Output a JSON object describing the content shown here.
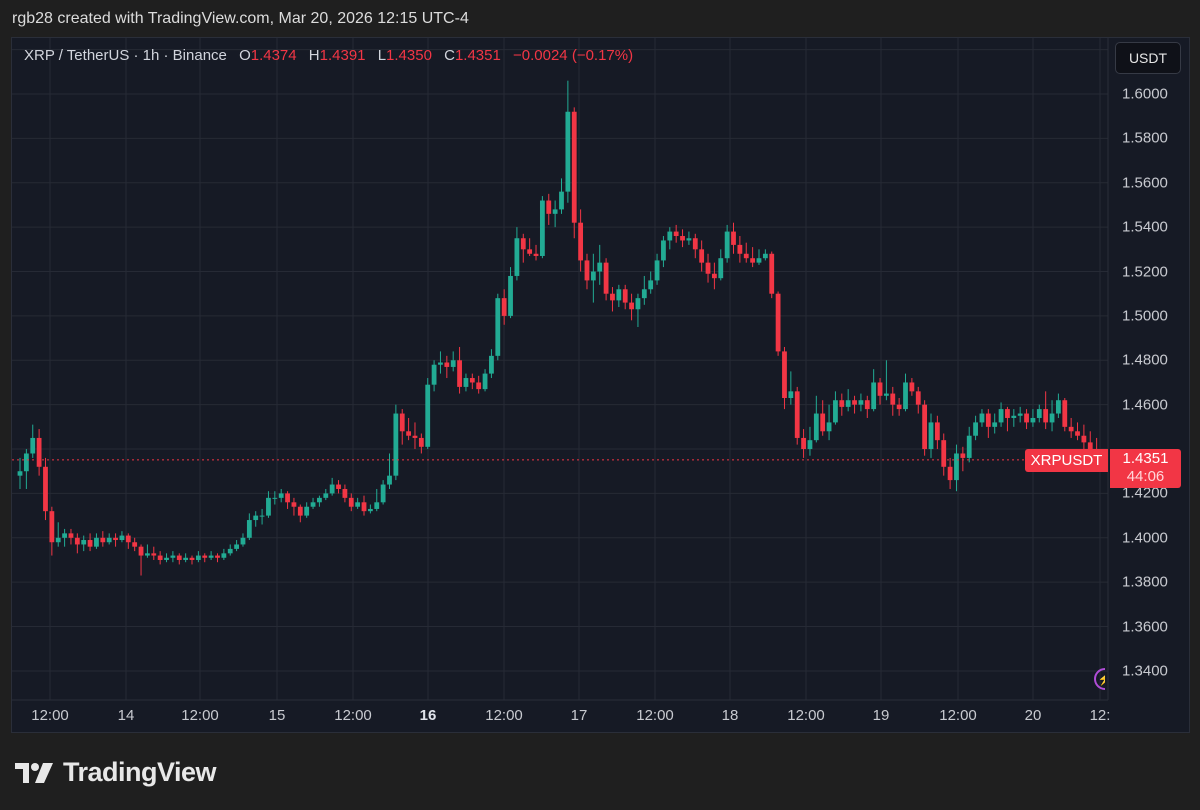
{
  "credit": "rgb28 created with TradingView.com, Mar 20, 2026 12:15 UTC-4",
  "legend": {
    "symbol": "XRP / TetherUS · 1h · Binance",
    "o_label": "O",
    "o": "1.4374",
    "h_label": "H",
    "h": "1.4391",
    "l_label": "L",
    "l": "1.4350",
    "c_label": "C",
    "c": "1.4351",
    "change": "−0.0024 (−0.17%)"
  },
  "unit_button": "USDT",
  "symbol_label": "XRPUSDT",
  "last_price": "1.4351",
  "countdown": "44:06",
  "logo_text": "TradingView",
  "colors": {
    "up": "#22ab94",
    "down": "#f23645",
    "background": "#161a25",
    "grid": "#262a35",
    "accent": "#f23645"
  },
  "icons": {
    "alert": "lightning-bolt-icon",
    "logo": "tradingview-logo-icon"
  },
  "chart_data": {
    "type": "candlestick",
    "title": "",
    "xlabel": "",
    "ylabel": "",
    "ylim": [
      1.325,
      1.62
    ],
    "grid": true,
    "y_ticks": [
      "1.6000",
      "1.5800",
      "1.5600",
      "1.5400",
      "1.5200",
      "1.5000",
      "1.4800",
      "1.4600",
      "1.4400",
      "1.4200",
      "1.4000",
      "1.3800",
      "1.3600",
      "1.3400"
    ],
    "x_ticks": [
      {
        "label": "12:00",
        "bold": false
      },
      {
        "label": "14",
        "bold": false
      },
      {
        "label": "12:00",
        "bold": false
      },
      {
        "label": "15",
        "bold": false
      },
      {
        "label": "12:00",
        "bold": false
      },
      {
        "label": "16",
        "bold": true
      },
      {
        "label": "12:00",
        "bold": false
      },
      {
        "label": "17",
        "bold": false
      },
      {
        "label": "12:00",
        "bold": false
      },
      {
        "label": "18",
        "bold": false
      },
      {
        "label": "12:00",
        "bold": false
      },
      {
        "label": "19",
        "bold": false
      },
      {
        "label": "12:00",
        "bold": false
      },
      {
        "label": "20",
        "bold": false
      },
      {
        "label": "12:",
        "bold": false
      }
    ],
    "current_price": 1.4351,
    "ohlc": [
      [
        1.428,
        1.436,
        1.422,
        1.43
      ],
      [
        1.43,
        1.44,
        1.422,
        1.438
      ],
      [
        1.438,
        1.451,
        1.436,
        1.445
      ],
      [
        1.445,
        1.449,
        1.428,
        1.432
      ],
      [
        1.432,
        1.436,
        1.408,
        1.412
      ],
      [
        1.412,
        1.414,
        1.392,
        1.398
      ],
      [
        1.398,
        1.407,
        1.396,
        1.4
      ],
      [
        1.4,
        1.404,
        1.396,
        1.402
      ],
      [
        1.402,
        1.404,
        1.397,
        1.4
      ],
      [
        1.4,
        1.402,
        1.393,
        1.397
      ],
      [
        1.397,
        1.401,
        1.394,
        1.399
      ],
      [
        1.399,
        1.402,
        1.394,
        1.396
      ],
      [
        1.396,
        1.402,
        1.395,
        1.4
      ],
      [
        1.4,
        1.403,
        1.396,
        1.398
      ],
      [
        1.398,
        1.402,
        1.397,
        1.4
      ],
      [
        1.4,
        1.402,
        1.396,
        1.399
      ],
      [
        1.399,
        1.403,
        1.398,
        1.401
      ],
      [
        1.401,
        1.402,
        1.395,
        1.398
      ],
      [
        1.398,
        1.4,
        1.394,
        1.396
      ],
      [
        1.396,
        1.397,
        1.383,
        1.392
      ],
      [
        1.392,
        1.397,
        1.391,
        1.393
      ],
      [
        1.393,
        1.396,
        1.39,
        1.392
      ],
      [
        1.392,
        1.394,
        1.388,
        1.39
      ],
      [
        1.39,
        1.393,
        1.389,
        1.391
      ],
      [
        1.391,
        1.394,
        1.389,
        1.392
      ],
      [
        1.392,
        1.393,
        1.388,
        1.39
      ],
      [
        1.39,
        1.393,
        1.389,
        1.391
      ],
      [
        1.391,
        1.392,
        1.388,
        1.39
      ],
      [
        1.39,
        1.394,
        1.389,
        1.392
      ],
      [
        1.392,
        1.393,
        1.389,
        1.391
      ],
      [
        1.391,
        1.394,
        1.39,
        1.392
      ],
      [
        1.392,
        1.393,
        1.389,
        1.391
      ],
      [
        1.391,
        1.395,
        1.39,
        1.393
      ],
      [
        1.393,
        1.397,
        1.392,
        1.395
      ],
      [
        1.395,
        1.399,
        1.394,
        1.397
      ],
      [
        1.397,
        1.402,
        1.396,
        1.4
      ],
      [
        1.4,
        1.411,
        1.399,
        1.408
      ],
      [
        1.408,
        1.412,
        1.405,
        1.41
      ],
      [
        1.41,
        1.413,
        1.406,
        1.41
      ],
      [
        1.41,
        1.421,
        1.409,
        1.418
      ],
      [
        1.418,
        1.421,
        1.415,
        1.418
      ],
      [
        1.418,
        1.422,
        1.416,
        1.42
      ],
      [
        1.42,
        1.421,
        1.413,
        1.416
      ],
      [
        1.416,
        1.418,
        1.41,
        1.414
      ],
      [
        1.414,
        1.415,
        1.407,
        1.41
      ],
      [
        1.41,
        1.416,
        1.409,
        1.414
      ],
      [
        1.414,
        1.418,
        1.413,
        1.416
      ],
      [
        1.416,
        1.419,
        1.414,
        1.418
      ],
      [
        1.418,
        1.422,
        1.417,
        1.42
      ],
      [
        1.42,
        1.427,
        1.419,
        1.424
      ],
      [
        1.424,
        1.426,
        1.42,
        1.422
      ],
      [
        1.422,
        1.424,
        1.416,
        1.418
      ],
      [
        1.418,
        1.42,
        1.412,
        1.414
      ],
      [
        1.414,
        1.418,
        1.413,
        1.416
      ],
      [
        1.416,
        1.419,
        1.41,
        1.412
      ],
      [
        1.412,
        1.415,
        1.411,
        1.413
      ],
      [
        1.413,
        1.422,
        1.412,
        1.416
      ],
      [
        1.416,
        1.426,
        1.415,
        1.424
      ],
      [
        1.424,
        1.438,
        1.422,
        1.428
      ],
      [
        1.428,
        1.46,
        1.426,
        1.456
      ],
      [
        1.456,
        1.458,
        1.442,
        1.448
      ],
      [
        1.448,
        1.454,
        1.444,
        1.446
      ],
      [
        1.446,
        1.452,
        1.44,
        1.445
      ],
      [
        1.445,
        1.447,
        1.438,
        1.441
      ],
      [
        1.441,
        1.472,
        1.44,
        1.469
      ],
      [
        1.469,
        1.48,
        1.466,
        1.478
      ],
      [
        1.478,
        1.484,
        1.474,
        1.479
      ],
      [
        1.479,
        1.482,
        1.472,
        1.477
      ],
      [
        1.477,
        1.484,
        1.475,
        1.48
      ],
      [
        1.48,
        1.486,
        1.465,
        1.468
      ],
      [
        1.468,
        1.474,
        1.466,
        1.472
      ],
      [
        1.472,
        1.474,
        1.467,
        1.47
      ],
      [
        1.47,
        1.473,
        1.465,
        1.467
      ],
      [
        1.467,
        1.476,
        1.466,
        1.474
      ],
      [
        1.474,
        1.485,
        1.472,
        1.482
      ],
      [
        1.482,
        1.51,
        1.48,
        1.508
      ],
      [
        1.508,
        1.512,
        1.496,
        1.5
      ],
      [
        1.5,
        1.522,
        1.499,
        1.518
      ],
      [
        1.518,
        1.54,
        1.516,
        1.535
      ],
      [
        1.535,
        1.537,
        1.524,
        1.53
      ],
      [
        1.53,
        1.535,
        1.527,
        1.528
      ],
      [
        1.528,
        1.532,
        1.525,
        1.527
      ],
      [
        1.527,
        1.554,
        1.526,
        1.552
      ],
      [
        1.552,
        1.555,
        1.541,
        1.546
      ],
      [
        1.546,
        1.552,
        1.54,
        1.548
      ],
      [
        1.548,
        1.562,
        1.546,
        1.556
      ],
      [
        1.556,
        1.606,
        1.551,
        1.592
      ],
      [
        1.592,
        1.594,
        1.535,
        1.542
      ],
      [
        1.542,
        1.548,
        1.52,
        1.525
      ],
      [
        1.525,
        1.528,
        1.512,
        1.516
      ],
      [
        1.516,
        1.528,
        1.506,
        1.52
      ],
      [
        1.52,
        1.532,
        1.514,
        1.524
      ],
      [
        1.524,
        1.526,
        1.507,
        1.51
      ],
      [
        1.51,
        1.513,
        1.502,
        1.507
      ],
      [
        1.507,
        1.514,
        1.504,
        1.512
      ],
      [
        1.512,
        1.514,
        1.503,
        1.506
      ],
      [
        1.506,
        1.51,
        1.498,
        1.503
      ],
      [
        1.503,
        1.51,
        1.495,
        1.508
      ],
      [
        1.508,
        1.518,
        1.505,
        1.512
      ],
      [
        1.512,
        1.52,
        1.51,
        1.516
      ],
      [
        1.516,
        1.528,
        1.514,
        1.525
      ],
      [
        1.525,
        1.536,
        1.522,
        1.534
      ],
      [
        1.534,
        1.54,
        1.53,
        1.538
      ],
      [
        1.538,
        1.541,
        1.533,
        1.536
      ],
      [
        1.536,
        1.539,
        1.531,
        1.534
      ],
      [
        1.534,
        1.538,
        1.532,
        1.535
      ],
      [
        1.535,
        1.537,
        1.526,
        1.53
      ],
      [
        1.53,
        1.534,
        1.52,
        1.524
      ],
      [
        1.524,
        1.528,
        1.515,
        1.519
      ],
      [
        1.519,
        1.524,
        1.512,
        1.517
      ],
      [
        1.517,
        1.53,
        1.516,
        1.526
      ],
      [
        1.526,
        1.541,
        1.524,
        1.538
      ],
      [
        1.538,
        1.542,
        1.528,
        1.532
      ],
      [
        1.532,
        1.536,
        1.524,
        1.528
      ],
      [
        1.528,
        1.533,
        1.524,
        1.526
      ],
      [
        1.526,
        1.531,
        1.522,
        1.524
      ],
      [
        1.524,
        1.53,
        1.523,
        1.526
      ],
      [
        1.526,
        1.53,
        1.525,
        1.528
      ],
      [
        1.528,
        1.529,
        1.508,
        1.51
      ],
      [
        1.51,
        1.511,
        1.482,
        1.484
      ],
      [
        1.484,
        1.486,
        1.458,
        1.463
      ],
      [
        1.463,
        1.475,
        1.46,
        1.466
      ],
      [
        1.466,
        1.468,
        1.442,
        1.445
      ],
      [
        1.445,
        1.449,
        1.436,
        1.44
      ],
      [
        1.44,
        1.45,
        1.437,
        1.444
      ],
      [
        1.444,
        1.464,
        1.443,
        1.456
      ],
      [
        1.456,
        1.462,
        1.446,
        1.448
      ],
      [
        1.448,
        1.46,
        1.444,
        1.452
      ],
      [
        1.452,
        1.466,
        1.451,
        1.462
      ],
      [
        1.462,
        1.465,
        1.455,
        1.459
      ],
      [
        1.459,
        1.467,
        1.457,
        1.462
      ],
      [
        1.462,
        1.464,
        1.456,
        1.46
      ],
      [
        1.46,
        1.465,
        1.457,
        1.462
      ],
      [
        1.462,
        1.464,
        1.454,
        1.458
      ],
      [
        1.458,
        1.476,
        1.457,
        1.47
      ],
      [
        1.47,
        1.472,
        1.46,
        1.464
      ],
      [
        1.464,
        1.48,
        1.462,
        1.465
      ],
      [
        1.465,
        1.468,
        1.455,
        1.46
      ],
      [
        1.46,
        1.463,
        1.455,
        1.458
      ],
      [
        1.458,
        1.474,
        1.457,
        1.47
      ],
      [
        1.47,
        1.472,
        1.464,
        1.466
      ],
      [
        1.466,
        1.468,
        1.456,
        1.46
      ],
      [
        1.46,
        1.462,
        1.437,
        1.44
      ],
      [
        1.44,
        1.456,
        1.436,
        1.452
      ],
      [
        1.452,
        1.455,
        1.44,
        1.444
      ],
      [
        1.444,
        1.447,
        1.428,
        1.432
      ],
      [
        1.432,
        1.436,
        1.422,
        1.426
      ],
      [
        1.426,
        1.442,
        1.421,
        1.438
      ],
      [
        1.438,
        1.441,
        1.43,
        1.436
      ],
      [
        1.436,
        1.45,
        1.434,
        1.446
      ],
      [
        1.446,
        1.455,
        1.444,
        1.452
      ],
      [
        1.452,
        1.458,
        1.45,
        1.456
      ],
      [
        1.456,
        1.458,
        1.445,
        1.45
      ],
      [
        1.45,
        1.456,
        1.447,
        1.452
      ],
      [
        1.452,
        1.461,
        1.45,
        1.458
      ],
      [
        1.458,
        1.459,
        1.448,
        1.454
      ],
      [
        1.454,
        1.458,
        1.45,
        1.455
      ],
      [
        1.455,
        1.459,
        1.452,
        1.456
      ],
      [
        1.456,
        1.458,
        1.449,
        1.452
      ],
      [
        1.452,
        1.458,
        1.45,
        1.454
      ],
      [
        1.454,
        1.46,
        1.452,
        1.458
      ],
      [
        1.458,
        1.466,
        1.449,
        1.452
      ],
      [
        1.452,
        1.462,
        1.448,
        1.456
      ],
      [
        1.456,
        1.465,
        1.454,
        1.462
      ],
      [
        1.462,
        1.463,
        1.448,
        1.45
      ],
      [
        1.45,
        1.454,
        1.445,
        1.448
      ],
      [
        1.448,
        1.452,
        1.444,
        1.446
      ],
      [
        1.446,
        1.451,
        1.44,
        1.443
      ],
      [
        1.443,
        1.448,
        1.438,
        1.44
      ],
      [
        1.44,
        1.445,
        1.436,
        1.4374
      ],
      [
        1.4374,
        1.4391,
        1.435,
        1.4351
      ]
    ]
  }
}
